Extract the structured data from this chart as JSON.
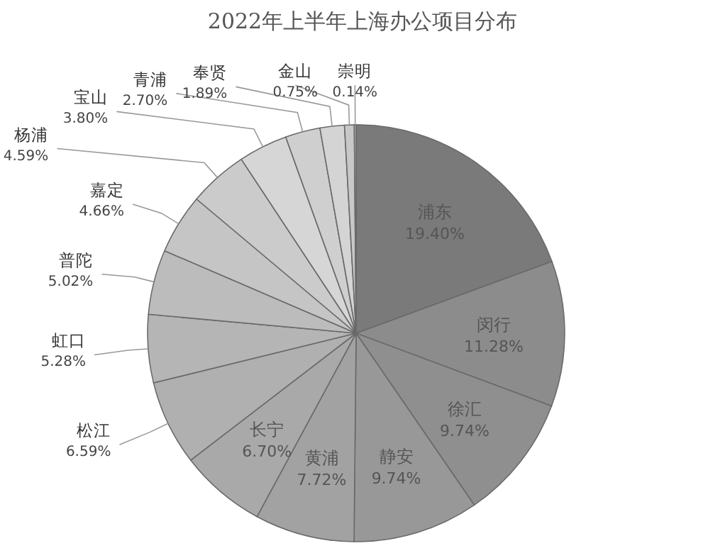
{
  "chart_data": {
    "type": "pie",
    "title": "2022年上半年上海办公项目分布",
    "categories": [
      "浦东",
      "闵行",
      "徐汇",
      "静安",
      "黄浦",
      "长宁",
      "松江",
      "虹口",
      "普陀",
      "嘉定",
      "杨浦",
      "宝山",
      "青浦",
      "奉贤",
      "金山",
      "崇明"
    ],
    "values": [
      19.4,
      11.28,
      9.74,
      9.74,
      7.72,
      6.7,
      6.59,
      5.28,
      5.02,
      4.66,
      4.59,
      3.8,
      2.7,
      1.89,
      0.75,
      0.14
    ],
    "value_labels": [
      "19.40%",
      "11.28%",
      "9.74%",
      "9.74%",
      "7.72%",
      "6.70%",
      "6.59%",
      "5.28%",
      "5.02%",
      "4.66%",
      "4.59%",
      "3.80%",
      "2.70%",
      "1.89%",
      "0.75%",
      "0.14%"
    ],
    "colors": [
      "#7a7a7a",
      "#8c8c8c",
      "#8f8f8f",
      "#989898",
      "#a2a2a2",
      "#a9a9a9",
      "#b0b0b0",
      "#b5b5b5",
      "#bcbcbc",
      "#c5c5c5",
      "#cbcbcb",
      "#d6d6d6",
      "#cfcfcf",
      "#d4d4d4",
      "#c8c8c8",
      "#bbbbbb"
    ]
  }
}
